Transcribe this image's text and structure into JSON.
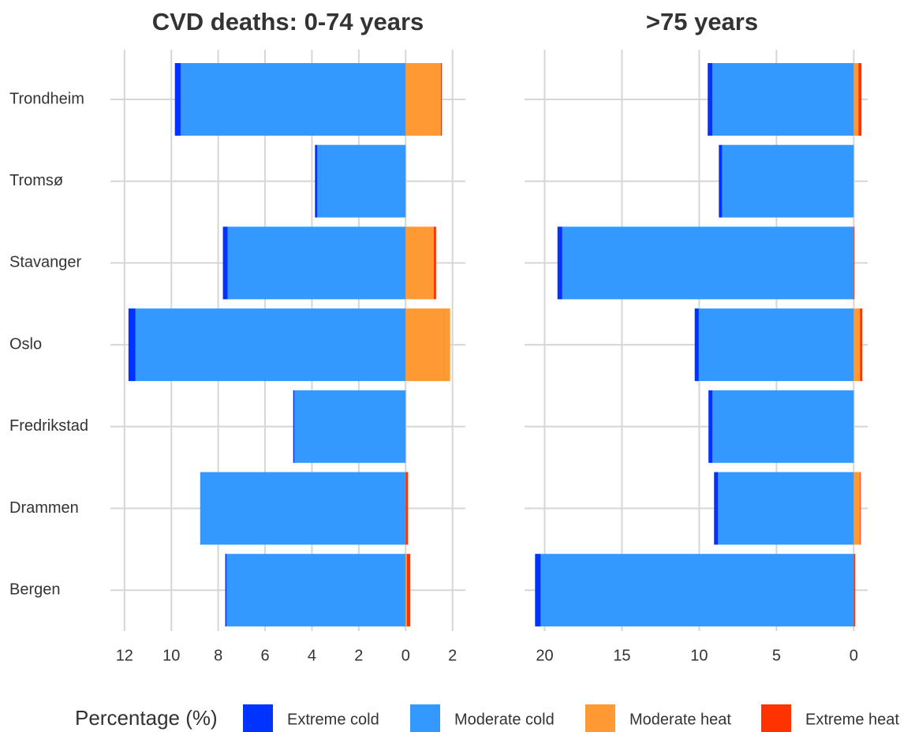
{
  "chart_data": [
    {
      "type": "diverging-bar",
      "title": "CVD deaths: 0-74 years",
      "categories": [
        "Trondheim",
        "Tromsø",
        "Stavanger",
        "Oslo",
        "Fredrikstad",
        "Drammen",
        "Bergen"
      ],
      "legend_title": "Percentage (%)",
      "series": [
        {
          "name": "Extreme cold",
          "color": "#0033ff",
          "values": [
            -0.25,
            -0.1,
            -0.2,
            -0.3,
            -0.05,
            0,
            -0.05
          ]
        },
        {
          "name": "Moderate cold",
          "color": "#3399ff",
          "values": [
            -9.6,
            -3.77,
            -7.6,
            -11.53,
            -4.75,
            -8.77,
            -7.65
          ]
        },
        {
          "name": "Moderate heat",
          "color": "#ff9933",
          "values": [
            1.5,
            0,
            1.2,
            1.9,
            0,
            0,
            0.05
          ]
        },
        {
          "name": "Extreme heat",
          "color": "#ff3300",
          "values": [
            0.05,
            0,
            0.1,
            0,
            0,
            0.1,
            0.15
          ]
        }
      ],
      "xlim": [
        -12.6,
        2.55
      ],
      "xticks": [
        {
          "value": -12,
          "label": "12"
        },
        {
          "value": -10,
          "label": "10"
        },
        {
          "value": -8,
          "label": "8"
        },
        {
          "value": -6,
          "label": "6"
        },
        {
          "value": -4,
          "label": "4"
        },
        {
          "value": -2,
          "label": "2"
        },
        0,
        2
      ],
      "grid": true
    },
    {
      "type": "diverging-bar",
      "title": ">75 years",
      "series": [
        {
          "name": "Extreme cold",
          "color": "#0033ff",
          "values": [
            -0.3,
            -0.21,
            -0.31,
            -0.26,
            -0.26,
            -0.26,
            -0.36
          ]
        },
        {
          "name": "Moderate cold",
          "color": "#3399ff",
          "values": [
            -9.15,
            -8.52,
            -18.86,
            -10.03,
            -9.14,
            -8.78,
            -20.26
          ]
        },
        {
          "name": "Moderate heat",
          "color": "#ff9933",
          "values": [
            0.3,
            0,
            0,
            0.4,
            0,
            0.4,
            0
          ]
        },
        {
          "name": "Extreme heat",
          "color": "#ff3300",
          "values": [
            0.2,
            0,
            0.05,
            0.15,
            0,
            0.05,
            0.1
          ]
        }
      ],
      "xlim": [
        -21.3,
        0.9
      ],
      "xticks": [
        {
          "value": -20,
          "label": "20"
        },
        {
          "value": -15,
          "label": "15"
        },
        {
          "value": -10,
          "label": "10"
        },
        {
          "value": -5,
          "label": "5"
        },
        0
      ],
      "grid": true
    }
  ]
}
